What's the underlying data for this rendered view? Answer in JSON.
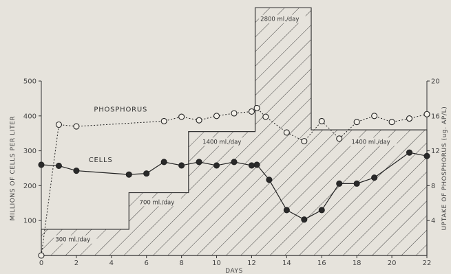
{
  "chart_data": {
    "type": "line",
    "title": "",
    "xlabel": "DAYS",
    "ylabel": "MILLIONS OF CELLS PER LITER",
    "y2label": "UPTAKE OF PHOSPHORUS (ug. AP/L)",
    "xlim": [
      0,
      22
    ],
    "ylim": [
      0,
      500
    ],
    "y2lim": [
      0,
      20
    ],
    "x_ticks": [
      "0",
      "2",
      "4",
      "6",
      "8",
      "10",
      "12",
      "14",
      "16",
      "18",
      "20",
      "22"
    ],
    "y_ticks": [
      "100",
      "200",
      "300",
      "400",
      "500"
    ],
    "y2_ticks": [
      "4",
      "8",
      "12",
      "16",
      "20"
    ],
    "series": [
      {
        "name": "PHOSPHORUS",
        "axis": "right",
        "marker": "open-circle",
        "style": "dotted",
        "x": [
          0,
          1,
          2,
          7,
          8,
          9,
          10,
          11,
          12,
          12.3,
          12.8,
          14,
          15,
          16,
          17,
          18,
          19,
          20,
          21,
          22
        ],
        "y": [
          0,
          15,
          14.8,
          15.4,
          15.9,
          15.5,
          16.0,
          16.3,
          16.5,
          16.9,
          15.9,
          14.1,
          13.1,
          15.4,
          13.4,
          15.3,
          16.0,
          15.3,
          15.7,
          16.2
        ]
      },
      {
        "name": "CELLS",
        "axis": "left",
        "marker": "filled-circle",
        "style": "solid",
        "x": [
          0,
          1,
          2,
          5,
          6,
          7,
          8,
          9,
          10,
          11,
          12,
          12.3,
          13,
          14,
          15,
          16,
          17,
          18,
          19,
          21,
          22
        ],
        "y": [
          260,
          257,
          243,
          232,
          235,
          268,
          258,
          268,
          258,
          268,
          258,
          260,
          217,
          130,
          103,
          130,
          206,
          206,
          223,
          295,
          285
        ]
      }
    ],
    "flow_rate": {
      "x": [
        0,
        5,
        5,
        8.4,
        8.4,
        12.2,
        12.2,
        15.4,
        15.4,
        22
      ],
      "y": [
        75,
        75,
        180,
        180,
        355,
        355,
        710,
        710,
        360,
        360
      ],
      "labels": [
        {
          "text": "300 ml./day",
          "x": 0.8,
          "y": 40
        },
        {
          "text": "700 ml./day",
          "x": 5.6,
          "y": 147
        },
        {
          "text": "1400 ml./day",
          "x": 9.2,
          "y": 320
        },
        {
          "text": "2800 ml./day",
          "x": 12.5,
          "y": 672
        },
        {
          "text": "1400 ml./day",
          "x": 17.7,
          "y": 320
        }
      ]
    },
    "series_labels": [
      {
        "text": "PHOSPHORUS",
        "x": 3.0,
        "y": 412
      },
      {
        "text": "CELLS",
        "x": 2.7,
        "y": 268
      }
    ]
  }
}
